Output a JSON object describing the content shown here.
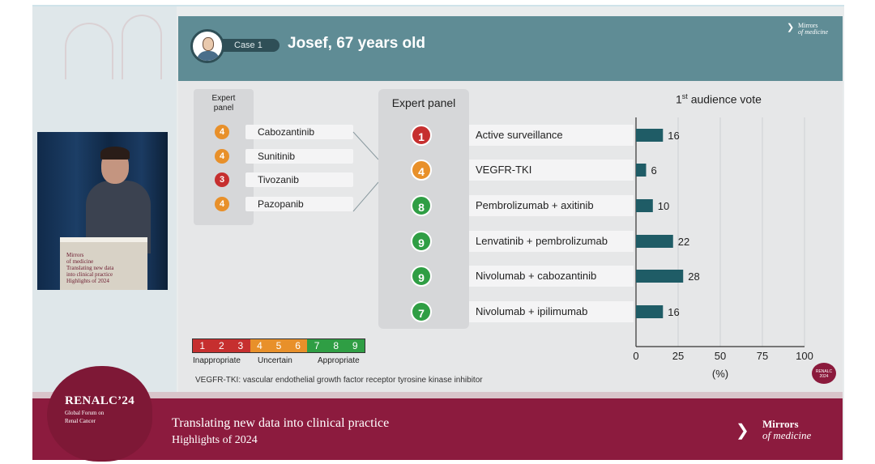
{
  "header": {
    "case_label": "Case 1",
    "patient": "Josef, 67 years old",
    "logo_line1": "Mirrors",
    "logo_line2": "of medicine"
  },
  "left_panel": {
    "title_line1": "Expert",
    "title_line2": "panel",
    "items": [
      {
        "score": "4",
        "drug": "Cabozantinib",
        "color": "#e8902a"
      },
      {
        "score": "4",
        "drug": "Sunitinib",
        "color": "#e8902a"
      },
      {
        "score": "3",
        "drug": "Tivozanib",
        "color": "#c62f2f"
      },
      {
        "score": "4",
        "drug": "Pazopanib",
        "color": "#e8902a"
      }
    ]
  },
  "right_panel": {
    "title": "Expert panel",
    "items": [
      {
        "score": "1",
        "option": "Active surveillance",
        "color": "#c62f2f"
      },
      {
        "score": "4",
        "option": "VEGFR-TKI",
        "color": "#e8902a"
      },
      {
        "score": "8",
        "option": "Pembrolizumab + axitinib",
        "color": "#2f9e44"
      },
      {
        "score": "9",
        "option": "Lenvatinib + pembrolizumab",
        "color": "#2f9e44"
      },
      {
        "score": "9",
        "option": "Nivolumab + cabozantinib",
        "color": "#2f9e44"
      },
      {
        "score": "7",
        "option": "Nivolumab + ipilimumab",
        "color": "#2f9e44"
      }
    ]
  },
  "chart_data": {
    "type": "bar",
    "orientation": "horizontal",
    "title_main": "1",
    "title_sup": "st",
    "title_rest": " audience vote",
    "categories": [
      "Active surveillance",
      "VEGFR-TKI",
      "Pembrolizumab + axitinib",
      "Lenvatinib + pembrolizumab",
      "Nivolumab + cabozantinib",
      "Nivolumab + ipilimumab"
    ],
    "values": [
      16,
      6,
      10,
      22,
      28,
      16
    ],
    "xlim": [
      0,
      100
    ],
    "xticks": [
      0,
      25,
      50,
      75,
      100
    ],
    "xlabel": "(%)",
    "bar_color": "#1f5c66",
    "grid": true
  },
  "scale": {
    "groups": [
      {
        "numbers": [
          "1",
          "2",
          "3"
        ],
        "label": "Inappropriate",
        "color": "#c62f2f"
      },
      {
        "numbers": [
          "4",
          "5",
          "6"
        ],
        "label": "Uncertain",
        "color": "#e8902a"
      },
      {
        "numbers": [
          "7",
          "8",
          "9"
        ],
        "label": "Appropriate",
        "color": "#2f9e44"
      }
    ]
  },
  "footnote": "VEGFR-TKI: vascular endothelial growth factor receptor tyrosine kinase inhibitor",
  "stamp": {
    "line1": "RENALC",
    "line2": "2024"
  },
  "podium": {
    "line1": "Mirrors",
    "line2": "of medicine",
    "line3": "Translating new data",
    "line4": "into clinical practice",
    "line5": "Highlights of 2024"
  },
  "footer": {
    "brand": "RENALC’24",
    "brand_sub1": "Global Forum on",
    "brand_sub2": "Renal Cancer",
    "talk_line1": "Translating new data into clinical practice",
    "talk_line2": "Highlights of 2024",
    "logo_line1": "Mirrors",
    "logo_line2": "of medicine"
  }
}
